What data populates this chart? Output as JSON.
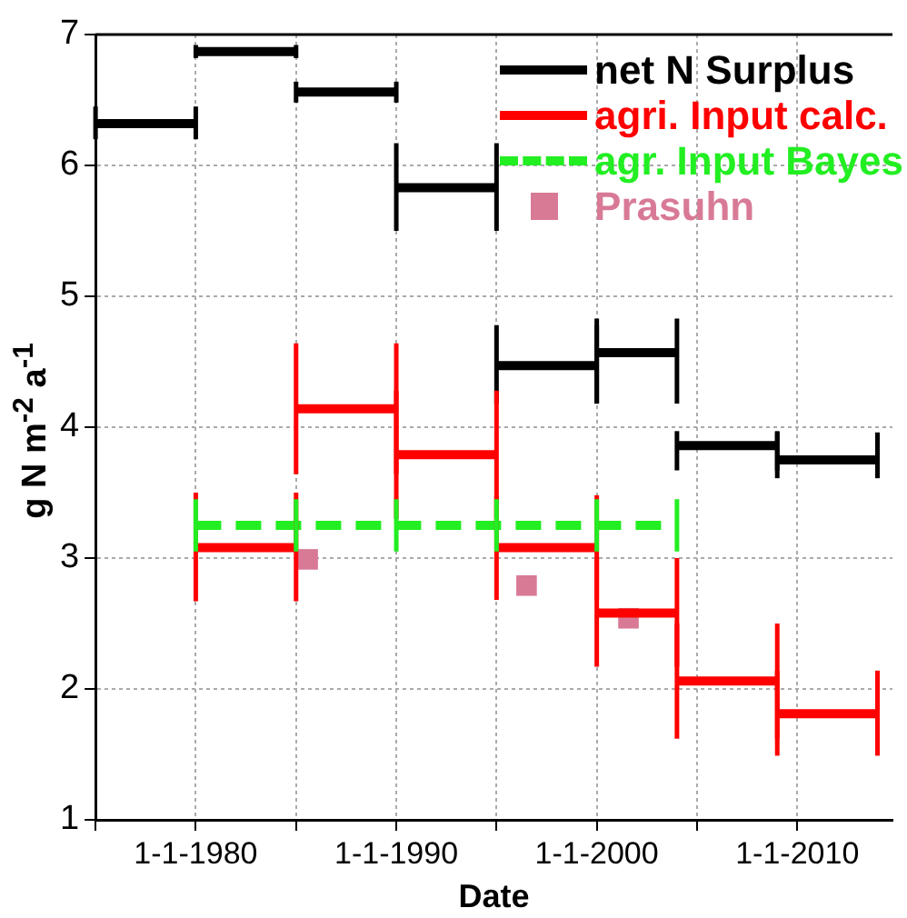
{
  "chart_data": {
    "type": "line",
    "xlabel": "Date",
    "ylabel": "g N m$^{-2}$ a$^{-1}$",
    "xlim": [
      "1975",
      "2014-10"
    ],
    "ylim": [
      1,
      7
    ],
    "xticks": [
      {
        "value": "1975",
        "label": null
      },
      {
        "value": "1980",
        "label": "1-1-1980"
      },
      {
        "value": "1985",
        "label": null
      },
      {
        "value": "1990",
        "label": "1-1-1990"
      },
      {
        "value": "1995",
        "label": null
      },
      {
        "value": "2000",
        "label": "1-1-2000"
      },
      {
        "value": "2005",
        "label": null
      },
      {
        "value": "2010",
        "label": "1-1-2010"
      }
    ],
    "yticks": [
      1,
      2,
      3,
      4,
      5,
      6,
      7
    ],
    "grid": true,
    "legend": "top right",
    "marker": "none",
    "series": [
      {
        "name": "net N Surplus",
        "color": "#000000",
        "line_style": "solid",
        "x": [
          "1975",
          "1980",
          "1980",
          "1985",
          "1985",
          "1990",
          "1990",
          "1995",
          "1995",
          "2000",
          "2000",
          "2004",
          "2004",
          "2009",
          "2009",
          "2014"
        ],
        "values": [
          6.32,
          6.32,
          6.87,
          6.87,
          6.56,
          6.56,
          5.83,
          5.83,
          4.47,
          4.47,
          4.57,
          4.57,
          3.86,
          3.86,
          3.75,
          3.75
        ],
        "errors": [
          [
            6.2,
            6.45
          ],
          [
            6.2,
            6.45
          ],
          [
            6.82,
            6.92
          ],
          [
            6.82,
            6.92
          ],
          [
            6.48,
            6.64
          ],
          [
            6.48,
            6.64
          ],
          [
            5.5,
            6.17
          ],
          [
            5.5,
            6.17
          ],
          [
            4.18,
            4.78
          ],
          [
            4.18,
            4.78
          ],
          [
            4.18,
            4.83
          ],
          [
            4.18,
            4.83
          ],
          [
            3.67,
            3.97
          ],
          [
            3.67,
            3.97
          ],
          [
            3.61,
            3.96
          ],
          [
            3.61,
            3.96
          ]
        ]
      },
      {
        "name": "agri. Input calc.",
        "color": "#ff0000",
        "line_style": "solid",
        "x": [
          "1980",
          "1985",
          "1985",
          "1990",
          "1990",
          "1995",
          "1995",
          "2000",
          "2000",
          "2004",
          "2004",
          "2009",
          "2009",
          "2014"
        ],
        "values": [
          3.08,
          3.08,
          4.14,
          4.14,
          3.79,
          3.79,
          3.08,
          3.08,
          2.58,
          2.58,
          2.06,
          2.06,
          1.81,
          1.81
        ],
        "errors": [
          [
            2.67,
            3.5
          ],
          [
            2.67,
            3.5
          ],
          [
            3.64,
            4.64
          ],
          [
            3.64,
            4.64
          ],
          [
            3.3,
            4.28
          ],
          [
            3.3,
            4.28
          ],
          [
            2.68,
            3.48
          ],
          [
            2.68,
            3.48
          ],
          [
            2.17,
            3.0
          ],
          [
            2.17,
            3.0
          ],
          [
            1.62,
            2.5
          ],
          [
            1.62,
            2.5
          ],
          [
            1.49,
            2.14
          ],
          [
            1.49,
            2.14
          ]
        ]
      },
      {
        "name": "agr. Input Bayes",
        "color": "#22ee22",
        "line_style": "dashed",
        "x": [
          "1980",
          "1985",
          "1990",
          "1995",
          "2000",
          "2004"
        ],
        "values": [
          3.25,
          3.25,
          3.25,
          3.25,
          3.25,
          3.25
        ],
        "errors": [
          [
            3.05,
            3.45
          ],
          [
            3.05,
            3.45
          ],
          [
            3.05,
            3.45
          ],
          [
            3.05,
            3.45
          ],
          [
            3.05,
            3.45
          ],
          [
            3.05,
            3.45
          ]
        ]
      },
      {
        "name": "Prasuhn",
        "type": "scatter",
        "marker": "square",
        "color": "#d87a96",
        "x": [
          "1985-08",
          "1996-07",
          "2001-08"
        ],
        "values": [
          2.99,
          2.79,
          2.54
        ]
      }
    ]
  }
}
